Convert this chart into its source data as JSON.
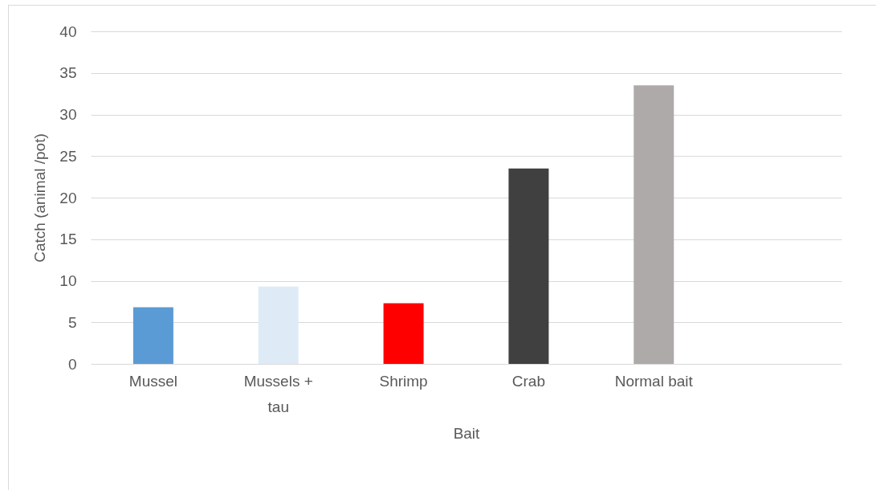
{
  "chart_data": {
    "type": "bar",
    "xlabel": "Bait",
    "ylabel": "Catch  (animal /pot)",
    "categories": [
      "Mussel",
      "Mussels + tau",
      "Shrimp",
      "Crab",
      "Normal bait",
      null
    ],
    "values": [
      6.8,
      9.3,
      7.3,
      23.5,
      33.5,
      null
    ],
    "colors": [
      "#5b9bd5",
      "#deebf7",
      "#ff0000",
      "#404040",
      "#aeaaaa",
      "#aeaaaa"
    ],
    "ylim": [
      0,
      40
    ],
    "yticks": [
      0,
      5,
      10,
      15,
      20,
      25,
      30,
      35,
      40
    ],
    "grid": "y"
  }
}
